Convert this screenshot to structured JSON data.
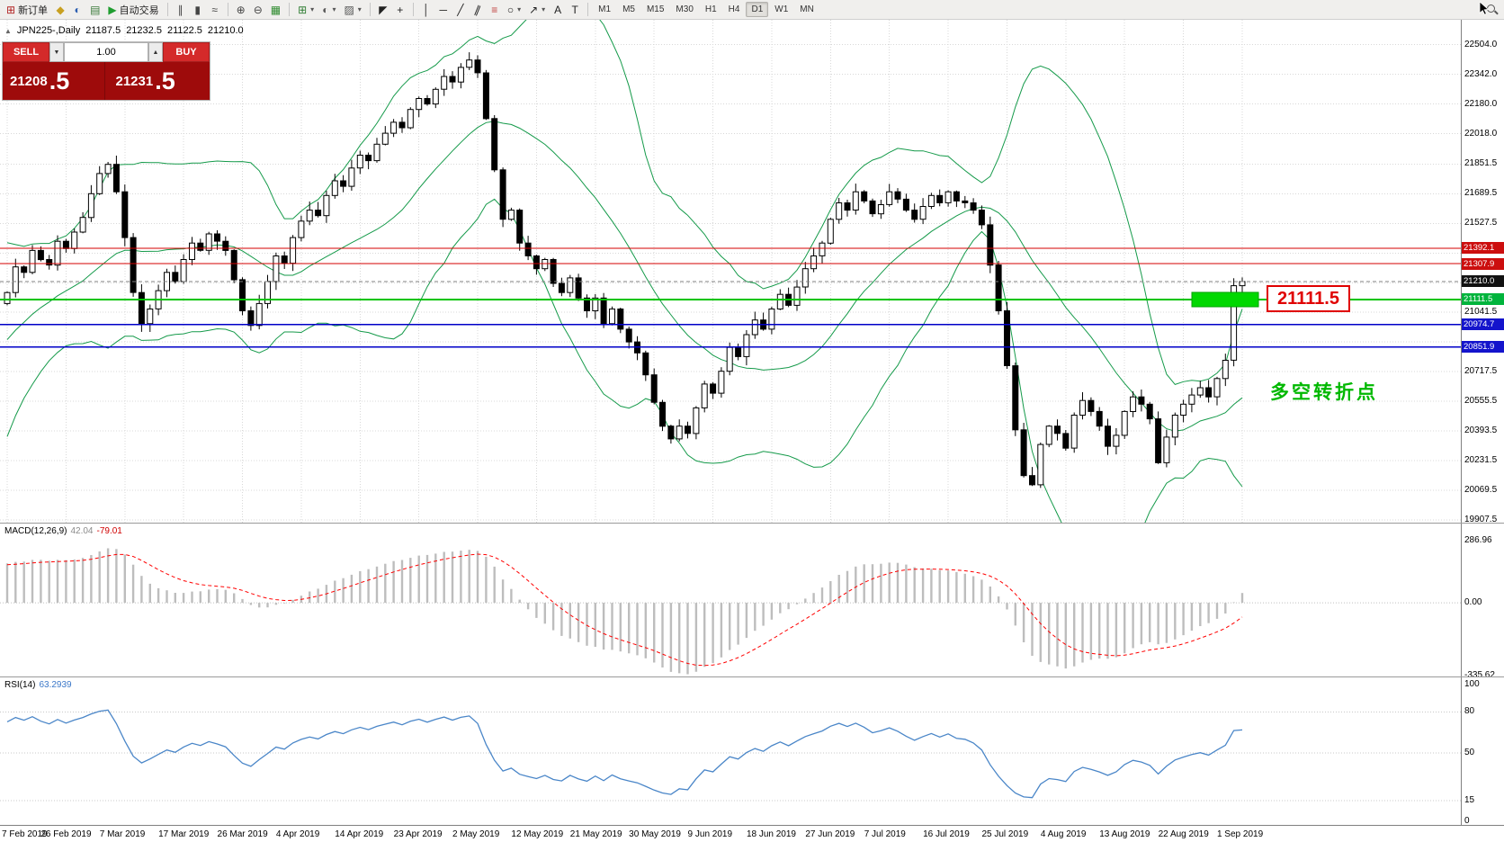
{
  "colors": {
    "grid": "#d8d8d8",
    "candle_up": "#ffffff",
    "candle_down": "#000000",
    "candle_stroke": "#000000",
    "bollinger": "#159a4a",
    "red_line": "#d40000",
    "blue_line": "#0000c8",
    "green_line": "#00c400",
    "current_line": "#808080",
    "macd_hist": "#bdbdbd",
    "macd_signal": "#ff0000",
    "rsi_line": "#4a86c8",
    "badge_red": "#cc0e0e",
    "badge_blue": "#1414cc",
    "badge_green": "#00b43c",
    "badge_current": "#111111",
    "box_color": "#00d800",
    "note_color": "#00b800",
    "label_color": "#e00000"
  },
  "toolbar": {
    "caret_glyph": "▾",
    "groups": [
      {
        "items": [
          {
            "name": "new-order-button",
            "glyph": "⊞",
            "color": "#b22222",
            "label": "新订单"
          },
          {
            "name": "chart-list-icon",
            "glyph": "◆",
            "color": "#c8a020"
          },
          {
            "name": "market-watch-icon",
            "glyph": "◐",
            "color": "#2a5db0"
          },
          {
            "name": "navigator-icon",
            "glyph": "▤",
            "color": "#3a7a3a"
          },
          {
            "name": "autotrading-button",
            "glyph": "▶",
            "color": "#1f9d2f",
            "label": "自动交易"
          }
        ]
      },
      {
        "items": [
          {
            "name": "bar-chart-icon",
            "glyph": "∥",
            "color": "#444444"
          },
          {
            "name": "candlestick-chart-icon",
            "glyph": "▮",
            "color": "#444444"
          },
          {
            "name": "line-chart-icon",
            "glyph": "≈",
            "color": "#444444"
          }
        ]
      },
      {
        "items": [
          {
            "name": "zoom-in-icon",
            "glyph": "⊕",
            "color": "#444444"
          },
          {
            "name": "zoom-out-icon",
            "glyph": "⊖",
            "color": "#444444"
          },
          {
            "name": "tile-windows-icon",
            "glyph": "▦",
            "color": "#2e8b2e"
          }
        ]
      },
      {
        "items": [
          {
            "name": "indicators-icon",
            "glyph": "⊞",
            "color": "#2e7d32",
            "caret": true
          },
          {
            "name": "periods-icon",
            "glyph": "◐",
            "color": "#555555",
            "caret": true
          },
          {
            "name": "templates-icon",
            "glyph": "▨",
            "color": "#555555",
            "caret": true
          }
        ]
      },
      {
        "items": [
          {
            "name": "cursor-icon",
            "glyph": "◤",
            "color": "#222222"
          },
          {
            "name": "crosshair-icon",
            "glyph": "+",
            "color": "#222222"
          }
        ]
      },
      {
        "items": [
          {
            "name": "vertical-line-icon",
            "glyph": "│",
            "color": "#222222"
          },
          {
            "name": "horizontal-line-icon",
            "glyph": "─",
            "color": "#222222"
          },
          {
            "name": "trendline-icon",
            "glyph": "╱",
            "color": "#222222"
          },
          {
            "name": "channel-icon",
            "glyph": "∥",
            "color": "#222222",
            "tilt": true
          },
          {
            "name": "fibonacci-icon",
            "glyph": "≡",
            "color": "#c04040"
          },
          {
            "name": "shapes-icon",
            "glyph": "○",
            "color": "#222222",
            "caret": true
          },
          {
            "name": "arrows-icon",
            "glyph": "↗",
            "color": "#222222",
            "caret": true
          },
          {
            "name": "text-icon",
            "glyph": "A",
            "color": "#222222"
          },
          {
            "name": "text-label-icon",
            "glyph": "T",
            "color": "#222222"
          }
        ]
      }
    ],
    "timeframes": {
      "items": [
        "M1",
        "M5",
        "M15",
        "M30",
        "H1",
        "H4",
        "D1",
        "W1",
        "MN"
      ],
      "active": "D1"
    },
    "right_icons": [
      {
        "name": "search-icon",
        "type": "mag"
      }
    ]
  },
  "symbol_line": {
    "collapse": "▲",
    "symbol": "JPN225-,Daily",
    "open": "21187.5",
    "high": "21232.5",
    "low": "21122.5",
    "close": "21210.0"
  },
  "trade_panel": {
    "sell_label": "SELL",
    "buy_label": "BUY",
    "volume": "1.00",
    "volume_down": "▼",
    "volume_up": "▲",
    "sell_price": {
      "main": "21208",
      "big": ".5"
    },
    "buy_price": {
      "main": "21231",
      "big": ".5"
    }
  },
  "chart": {
    "type": "candlestick-with-indicators",
    "symbol": "JPN225-",
    "timeframe": "Daily",
    "prehistory": [
      20350,
      20250,
      20400,
      20500,
      20600,
      20700,
      20750,
      20850,
      20950,
      21000,
      20900,
      21050,
      21100,
      21000,
      21100,
      21150,
      21100,
      21050,
      21150,
      21100
    ],
    "closes": [
      21150,
      21290,
      21260,
      21380,
      21330,
      21300,
      21430,
      21390,
      21480,
      21560,
      21690,
      21800,
      21850,
      21700,
      21450,
      21150,
      20980,
      21060,
      21160,
      21260,
      21210,
      21330,
      21420,
      21380,
      21470,
      21430,
      21380,
      21220,
      21050,
      20970,
      21090,
      21210,
      21350,
      21310,
      21450,
      21540,
      21600,
      21570,
      21680,
      21760,
      21730,
      21830,
      21900,
      21870,
      21960,
      22020,
      22080,
      22050,
      22150,
      22210,
      22180,
      22260,
      22330,
      22300,
      22380,
      22420,
      22350,
      22100,
      21820,
      21550,
      21600,
      21420,
      21350,
      21280,
      21330,
      21200,
      21150,
      21230,
      21120,
      21050,
      21120,
      20980,
      21060,
      20950,
      20880,
      20820,
      20700,
      20550,
      20420,
      20350,
      20420,
      20380,
      20520,
      20650,
      20600,
      20720,
      20850,
      20800,
      20920,
      21000,
      20950,
      21060,
      21140,
      21080,
      21180,
      21280,
      21350,
      21420,
      21550,
      21640,
      21600,
      21700,
      21650,
      21580,
      21630,
      21700,
      21660,
      21600,
      21550,
      21620,
      21680,
      21640,
      21700,
      21650,
      21640,
      21600,
      21520,
      21300,
      21050,
      20750,
      20400,
      20150,
      20100,
      20320,
      20420,
      20380,
      20300,
      20480,
      20560,
      20500,
      20420,
      20310,
      20370,
      20500,
      20580,
      20540,
      20460,
      20220,
      20360,
      20480,
      20540,
      20590,
      20630,
      20580,
      20680,
      20780,
      21187,
      21210
    ],
    "last_candle": {
      "o": 21187.5,
      "h": 21232.5,
      "l": 21122.5,
      "c": 21210.0
    },
    "bollinger": {
      "period": 20,
      "deviation": 2
    },
    "grid_prices": [
      22504,
      22342,
      22180,
      22018,
      21851.5,
      21689.5,
      21527.5,
      21365.5,
      21203.5,
      21041.5,
      20879.5,
      20717.5,
      20555.5,
      20393.5,
      20231.5,
      20069.5,
      19907.5
    ],
    "price_axis": {
      "items": [
        {
          "text": "22504.0",
          "type": "plain"
        },
        {
          "text": "22342.0",
          "type": "plain"
        },
        {
          "text": "22180.0",
          "type": "plain"
        },
        {
          "text": "22018.0",
          "type": "plain"
        },
        {
          "text": "21851.5",
          "type": "plain"
        },
        {
          "text": "21689.5",
          "type": "plain"
        },
        {
          "text": "21527.5",
          "type": "plain"
        },
        {
          "text": "21392.1",
          "type": "red"
        },
        {
          "text": "21307.9",
          "type": "red"
        },
        {
          "text": "21210.0",
          "type": "current"
        },
        {
          "text": "21111.5",
          "type": "green"
        },
        {
          "text": "21041.5",
          "type": "plain"
        },
        {
          "text": "20974.7",
          "type": "blue"
        },
        {
          "text": "20851.9",
          "type": "blue"
        },
        {
          "text": "20717.5",
          "type": "plain"
        },
        {
          "text": "20555.5",
          "type": "plain"
        },
        {
          "text": "20393.5",
          "type": "plain"
        },
        {
          "text": "20231.5",
          "type": "plain"
        },
        {
          "text": "20069.5",
          "type": "plain"
        },
        {
          "text": "19907.5",
          "type": "plain"
        }
      ]
    },
    "lines": [
      {
        "price": 21392.1,
        "type": "red"
      },
      {
        "price": 21307.9,
        "type": "red"
      },
      {
        "price": 21111.5,
        "type": "green"
      },
      {
        "price": 20974.7,
        "type": "blue"
      },
      {
        "price": 20851.9,
        "type": "blue"
      }
    ],
    "current_price": "21210.0",
    "annotations": {
      "breakout_label": "21111.5",
      "note": "多空转折点"
    },
    "macd": {
      "label": "MACD(12,26,9)",
      "main": "42.04",
      "signal": "-79.01",
      "axis": [
        "286.96",
        "0.00",
        "-335.62"
      ]
    },
    "rsi": {
      "label": "RSI(14)",
      "value": "63.2939",
      "axis": [
        "100",
        "80",
        "50",
        "15",
        "0"
      ],
      "levels": [
        80,
        50,
        15
      ]
    },
    "time_axis": [
      "7 Feb 2019",
      "26 Feb 2019",
      "7 Mar 2019",
      "17 Mar 2019",
      "26 Mar 2019",
      "4 Apr 2019",
      "14 Apr 2019",
      "23 Apr 2019",
      "2 May 2019",
      "12 May 2019",
      "21 May 2019",
      "30 May 2019",
      "9 Jun 2019",
      "18 Jun 2019",
      "27 Jun 2019",
      "7 Jul 2019",
      "16 Jul 2019",
      "25 Jul 2019",
      "4 Aug 2019",
      "13 Aug 2019",
      "22 Aug 2019",
      "1 Sep 2019"
    ]
  }
}
